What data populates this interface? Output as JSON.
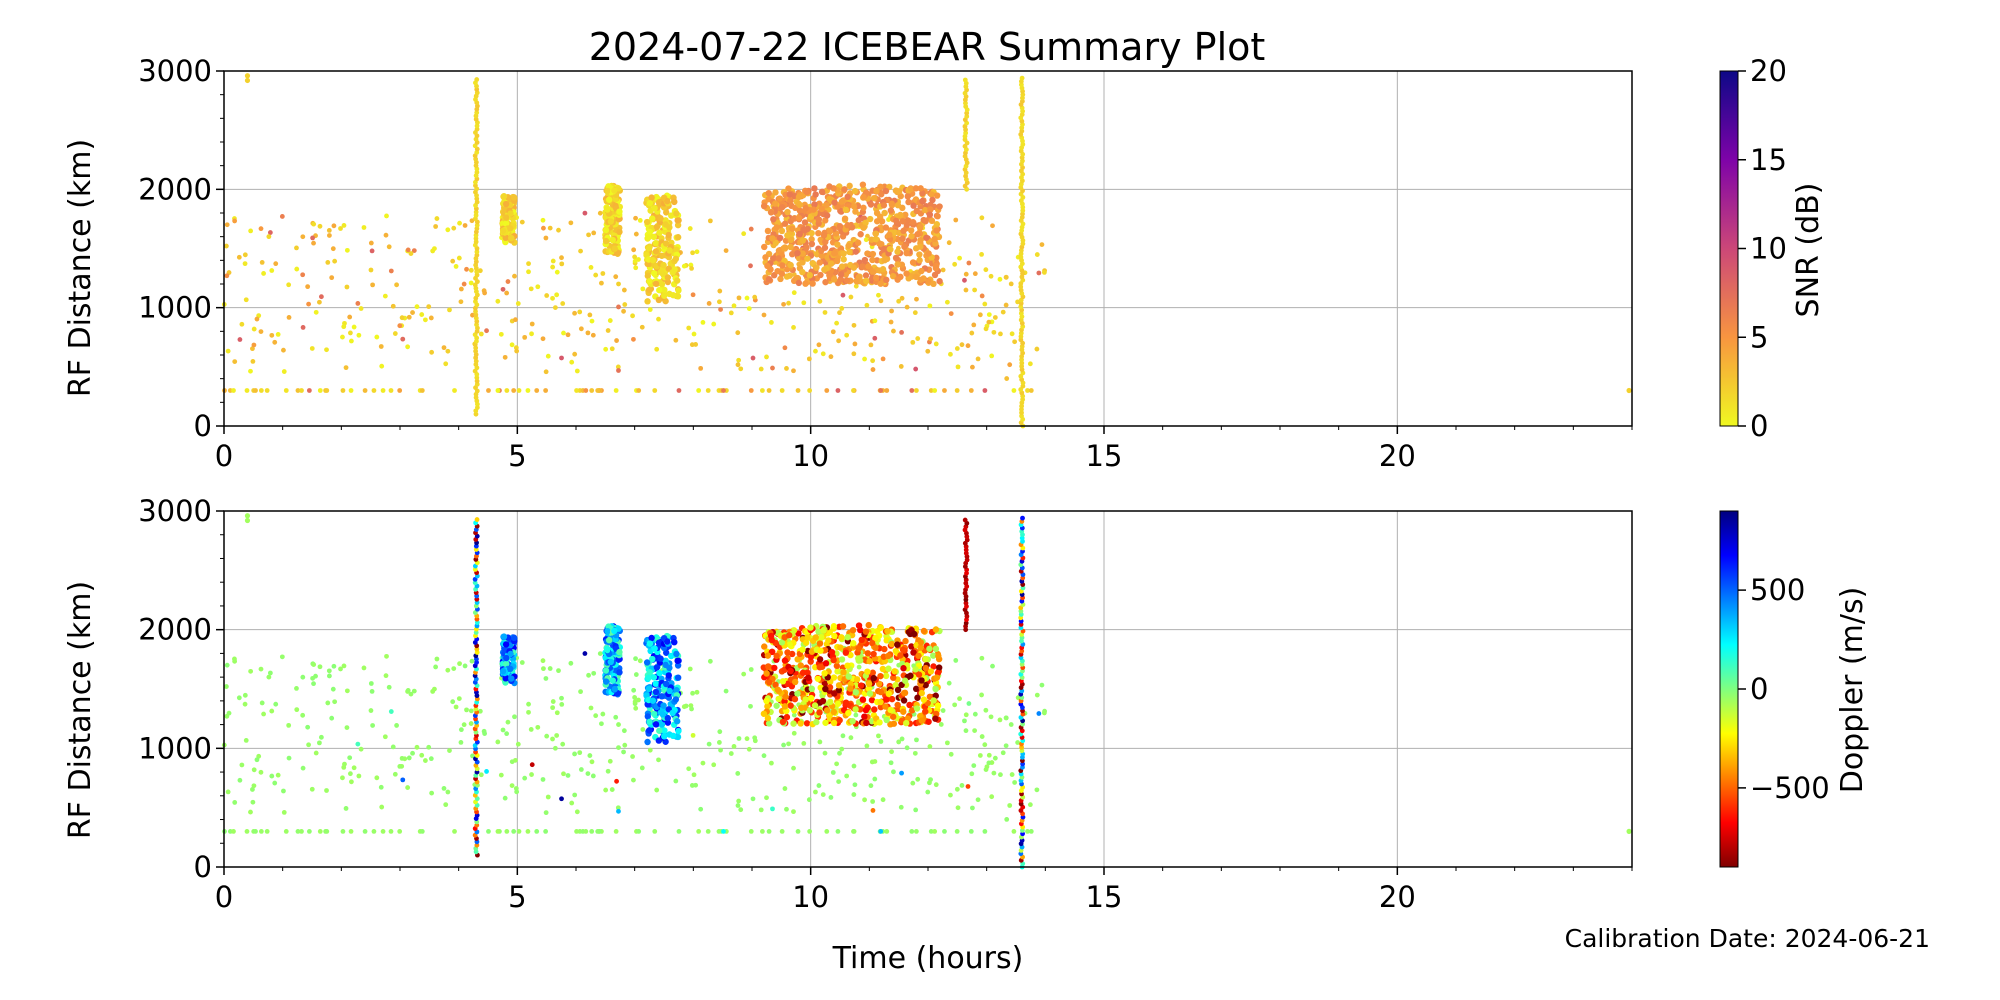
{
  "title": "2024-07-22 ICEBEAR Summary Plot",
  "calibration": "Calibration Date: 2024-06-21",
  "chart_data": [
    {
      "type": "scatter",
      "panel": "top",
      "xlabel": "",
      "ylabel": "RF Distance (km)",
      "xlim": [
        0,
        24
      ],
      "ylim": [
        0,
        3000
      ],
      "x_ticks": [
        0,
        5,
        10,
        15,
        20
      ],
      "y_ticks": [
        0,
        1000,
        2000,
        3000
      ],
      "grid": true,
      "colorbar": {
        "label": "SNR (dB)",
        "range": [
          0,
          20
        ],
        "ticks": [
          0,
          5,
          10,
          15,
          20
        ],
        "colormap": "plasma_r",
        "colors": [
          "#f0f921",
          "#f89540",
          "#cc4778",
          "#7e03a8",
          "#0d0887"
        ]
      },
      "clusters": [
        {
          "t0": 4.75,
          "t1": 4.95,
          "r0": 1550,
          "r1": 1950,
          "snr": 1
        },
        {
          "t0": 6.5,
          "t1": 6.75,
          "r0": 1450,
          "r1": 2050,
          "snr": 1
        },
        {
          "t0": 7.2,
          "t1": 7.75,
          "r0": 1050,
          "r1": 1950,
          "snr": 1
        },
        {
          "t0": 9.2,
          "t1": 12.2,
          "r0": 1200,
          "r1": 2000,
          "snr": 4
        }
      ],
      "streaks": [
        {
          "t": 4.3,
          "r0": 100,
          "r1": 2950,
          "snr": 1
        },
        {
          "t": 12.65,
          "r0": 2000,
          "r1": 2950,
          "snr": 1
        },
        {
          "t": 13.6,
          "r0": 0,
          "r1": 2950,
          "snr": 1
        }
      ]
    },
    {
      "type": "scatter",
      "panel": "bottom",
      "xlabel": "Time (hours)",
      "ylabel": "RF Distance (km)",
      "xlim": [
        0,
        24
      ],
      "ylim": [
        0,
        3000
      ],
      "x_ticks": [
        0,
        5,
        10,
        15,
        20
      ],
      "y_ticks": [
        0,
        1000,
        2000,
        3000
      ],
      "grid": true,
      "colorbar": {
        "label": "Doppler (m/s)",
        "range": [
          -900,
          900
        ],
        "ticks": [
          -500,
          0,
          500
        ],
        "colormap": "jet_r",
        "colors": [
          "#800000",
          "#ff0000",
          "#ff8000",
          "#ffff00",
          "#80ff80",
          "#00ffff",
          "#0080ff",
          "#0000ff",
          "#000080"
        ]
      },
      "clusters": [
        {
          "t0": 4.75,
          "t1": 4.95,
          "r0": 1550,
          "r1": 1950,
          "doppler": 400
        },
        {
          "t0": 6.5,
          "t1": 6.75,
          "r0": 1450,
          "r1": 2050,
          "doppler": 350
        },
        {
          "t0": 7.2,
          "t1": 7.75,
          "r0": 1050,
          "r1": 1950,
          "doppler": 400
        },
        {
          "t0": 9.2,
          "t1": 12.2,
          "r0": 1200,
          "r1": 2000,
          "doppler": -350
        }
      ],
      "streaks": [
        {
          "t": 4.3,
          "r0": 100,
          "r1": 2950,
          "doppler": 0
        },
        {
          "t": 12.65,
          "r0": 2000,
          "r1": 2950,
          "doppler": -800
        },
        {
          "t": 13.6,
          "r0": 0,
          "r1": 2950,
          "doppler": 0
        }
      ]
    }
  ]
}
